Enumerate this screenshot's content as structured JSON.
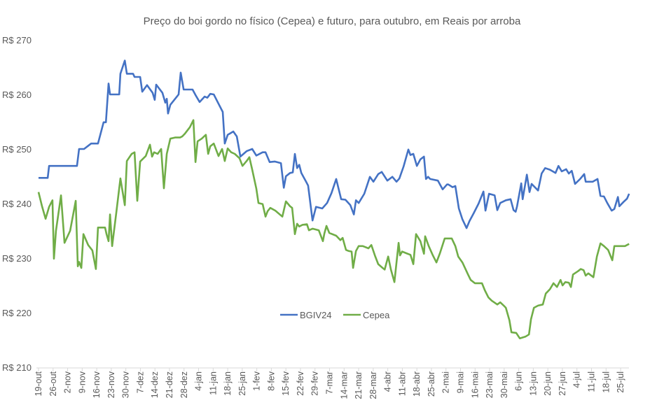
{
  "chart_data": {
    "type": "line",
    "title": "Preço do boi gordo no físico (Cepea) e futuro, para outubro, em Reais por arroba",
    "xlabel": "",
    "ylabel": "",
    "ylim": [
      210,
      270
    ],
    "yticks": [
      210,
      220,
      230,
      240,
      250,
      260,
      270
    ],
    "ytick_prefix": "R$ ",
    "x_unit": "days since 19-out",
    "xlim": [
      0,
      284
    ],
    "xtick_labels": [
      "19-out",
      "26-out",
      "2-nov",
      "9-nov",
      "16-nov",
      "23-nov",
      "30-nov",
      "7-dez",
      "14-dez",
      "21-dez",
      "28-dez",
      "4-jan",
      "11-jan",
      "18-jan",
      "25-jan",
      "1-fev",
      "8-fev",
      "15-fev",
      "22-fev",
      "29-fev",
      "7-mar",
      "14-mar",
      "21-mar",
      "28-mar",
      "4-abr",
      "11-abr",
      "18-abr",
      "25-abr",
      "2-mai",
      "9-mai",
      "16-mai",
      "23-mai",
      "30-mai",
      "6-jun",
      "13-jun",
      "20-jun",
      "27-jun",
      "4-jul",
      "11-jul",
      "18-jul",
      "25-jul"
    ],
    "xtick_step_days": 7,
    "grid": false,
    "legend": {
      "placement": "bottom-center-inside"
    },
    "series": [
      {
        "name": "BGIV24",
        "color": "#4472C4",
        "x": [
          0,
          4.4,
          5.1,
          18.5,
          19.5,
          21.9,
          25.3,
          28.6,
          31.3,
          32.4,
          33.7,
          34.4,
          38.8,
          39.4,
          41.5,
          42.5,
          45.5,
          46.2,
          48.9,
          49.9,
          52.2,
          54.9,
          55.9,
          56.6,
          59.6,
          61,
          61.7,
          62.3,
          63.4,
          67.4,
          68.4,
          69.8,
          74.1,
          75.5,
          77.5,
          79.9,
          81.2,
          82.6,
          84.3,
          86.6,
          88.6,
          89.6,
          91,
          93.7,
          95.4,
          97.1,
          100.1,
          102.8,
          104.8,
          107.8,
          109.2,
          111.2,
          113.6,
          116.6,
          118,
          119,
          121,
          122.3,
          123.3,
          124.4,
          125.4,
          126.4,
          128.7,
          129.7,
          131.8,
          133.5,
          136.5,
          138.8,
          140.9,
          143.2,
          145.6,
          147.6,
          150,
          151.7,
          152.7,
          154,
          156.7,
          159.4,
          161.1,
          163.4,
          165.1,
          167.8,
          170.2,
          172.2,
          173.6,
          175.6,
          177.9,
          178.9,
          180.3,
          182,
          183.7,
          185.4,
          186.4,
          187.4,
          188.4,
          192.1,
          194.4,
          196.5,
          197.1,
          199.2,
          200.5,
          202.2,
          203.9,
          205.9,
          207.3,
          209.3,
          211.7,
          214,
          215,
          216.7,
          219.4,
          220.7,
          222.1,
          224.8,
          227.1,
          228.5,
          229.5,
          230.2,
          232.2,
          232.9,
          234.9,
          236.2,
          237.2,
          240.3,
          242,
          243.7,
          246,
          248.7,
          250.1,
          251.7,
          253.8,
          255.1,
          256.5,
          258.1,
          260.5,
          262.5,
          263.2,
          266.6,
          268.9,
          270.3,
          272,
          273.6,
          275.7,
          277,
          278.7,
          279.4,
          281.4,
          283.1,
          284.1
        ],
        "values": [
          244.7,
          244.7,
          246.9,
          246.9,
          250,
          250,
          251,
          251,
          254.9,
          254.9,
          262,
          260,
          260,
          263.8,
          266.2,
          263.8,
          263.8,
          263.2,
          263.2,
          260.5,
          261.7,
          260.3,
          259,
          261.8,
          260.3,
          258.5,
          259.2,
          256.5,
          258.1,
          260,
          264,
          260.9,
          260.9,
          259.9,
          258.6,
          259.6,
          259.4,
          260.1,
          260,
          258.3,
          256.8,
          251,
          252.6,
          253.2,
          252.3,
          248.6,
          249.6,
          250,
          248.8,
          249.4,
          249.4,
          247.6,
          247.7,
          247.4,
          242.9,
          245,
          245.6,
          245.7,
          249.1,
          246.5,
          247.1,
          245.6,
          244,
          243.3,
          236.9,
          239.4,
          239.1,
          240.1,
          241.9,
          244.5,
          240.8,
          240.7,
          239.7,
          238,
          240.6,
          240.1,
          241.8,
          244.9,
          244,
          245.4,
          245.8,
          244.2,
          244.9,
          244,
          244.6,
          246.8,
          249.9,
          248.9,
          249.1,
          246.9,
          248.1,
          248.6,
          244.5,
          244.9,
          244.5,
          244.2,
          242.6,
          243.5,
          243.5,
          243,
          243.2,
          239.1,
          237.1,
          235.5,
          236.8,
          238.2,
          240,
          242.2,
          238.7,
          241.8,
          241.5,
          238.8,
          240.1,
          240.6,
          240.8,
          238.8,
          238.5,
          239.5,
          243.7,
          240.8,
          245.3,
          242.1,
          243.6,
          242.4,
          245.5,
          246.5,
          246.2,
          245.6,
          246.9,
          245.9,
          246.3,
          245.5,
          246,
          243.6,
          244.5,
          245.4,
          244,
          244,
          244.5,
          241.4,
          241.3,
          240.1,
          238.7,
          239,
          241.2,
          239.5,
          240.3,
          240.9,
          241.8
        ]
      },
      {
        "name": "Cepea",
        "color": "#70AD47",
        "x": [
          0,
          1.7,
          3.4,
          5.1,
          6.7,
          7.4,
          8.4,
          10.8,
          12.5,
          15.2,
          17.9,
          18.9,
          19.5,
          20.6,
          21.6,
          23.9,
          25.9,
          27.6,
          28.6,
          32,
          32.7,
          33.7,
          34.4,
          35.4,
          37.4,
          39.4,
          41.5,
          42.5,
          44.8,
          46.2,
          47.5,
          48.9,
          51.6,
          53.6,
          54.6,
          55.6,
          57.3,
          59,
          60.3,
          61.7,
          63.4,
          65.7,
          68.1,
          69.1,
          70.4,
          72.8,
          74.5,
          75.5,
          76.5,
          78.5,
          80.5,
          81.6,
          82.6,
          84.3,
          86.6,
          88.3,
          89.6,
          91,
          92.7,
          94.4,
          96.7,
          98.1,
          100.1,
          101.4,
          102.8,
          104.8,
          105.8,
          107.8,
          109.2,
          110.2,
          111.5,
          113.9,
          117.3,
          119,
          121,
          122,
          123.3,
          124.4,
          125.4,
          127,
          129.1,
          130.1,
          131.8,
          134.8,
          136.8,
          137.5,
          138.5,
          139.9,
          143.2,
          145.2,
          146.3,
          147.9,
          149.3,
          150.6,
          151.3,
          152.7,
          154,
          156,
          158.7,
          160.1,
          161.8,
          163.4,
          165.5,
          166.5,
          168.2,
          169.5,
          171.2,
          173.2,
          173.9,
          174.9,
          176.9,
          178.9,
          180.3,
          181.6,
          183.7,
          185.4,
          186,
          187.7,
          189.7,
          191.4,
          193.1,
          195.4,
          198.8,
          200.5,
          201.9,
          203.9,
          206.6,
          207.9,
          209.9,
          213.3,
          214.7,
          216.4,
          218,
          220.7,
          222.1,
          223.8,
          224.8,
          226.5,
          227.5,
          229.8,
          231.5,
          234.2,
          235.9,
          236.9,
          238.3,
          240.3,
          242.6,
          244,
          246,
          247.7,
          249.4,
          251.1,
          252.1,
          253.4,
          255.1,
          256.1,
          257.1,
          259.5,
          260.8,
          262.2,
          263.2,
          264.5,
          266.9,
          268.6,
          270.3,
          272,
          274,
          276,
          277,
          280,
          282.1,
          284.1
        ],
        "values": [
          242.1,
          239.5,
          237.2,
          239.4,
          240.6,
          229.9,
          235,
          241.5,
          232.8,
          235,
          240.5,
          228.5,
          229.3,
          228.2,
          234.4,
          232.4,
          231.4,
          228,
          235.6,
          235.6,
          234.4,
          233.1,
          238,
          232.2,
          238.3,
          244.6,
          239.7,
          247.8,
          249.1,
          249.4,
          240.5,
          247.7,
          248.7,
          250.8,
          248.6,
          249.4,
          249.1,
          250,
          242.8,
          249.1,
          251.9,
          252.1,
          252.1,
          252.3,
          252.8,
          254,
          255.3,
          247.6,
          251.4,
          251.9,
          252.6,
          249.1,
          250.5,
          251,
          248.7,
          250,
          247.8,
          250.1,
          249.4,
          249.1,
          248.3,
          246.9,
          247.8,
          248.5,
          246.2,
          242.7,
          240.1,
          239.9,
          237.6,
          238.6,
          239.2,
          238.7,
          237.6,
          240.4,
          239.5,
          239.2,
          234.4,
          236.3,
          235.8,
          236.1,
          236.2,
          235.1,
          235.4,
          235.1,
          233.1,
          234.5,
          235.9,
          234.6,
          234.1,
          233.3,
          233.7,
          231.5,
          231.3,
          231.2,
          228.2,
          231.3,
          232.2,
          232.2,
          231.8,
          232.4,
          230.5,
          228.9,
          228.2,
          227.9,
          230.3,
          227.9,
          225.6,
          232.8,
          230.5,
          231.2,
          230.9,
          230.6,
          228.9,
          234.4,
          233.1,
          230.8,
          234,
          232.2,
          230.5,
          229.2,
          230.9,
          233.6,
          233.6,
          232.2,
          230.3,
          229.2,
          227,
          226,
          225.4,
          225.4,
          224.1,
          222.8,
          222.2,
          221.5,
          221.9,
          221.3,
          220.9,
          218.6,
          216.4,
          216.3,
          215.3,
          215.6,
          216,
          218.8,
          220.9,
          221.3,
          221.5,
          223.5,
          224.3,
          225.4,
          224.7,
          226,
          225,
          225.6,
          225.5,
          224.7,
          227,
          227.6,
          228,
          227.8,
          226.8,
          227.2,
          226.5,
          230.3,
          232.7,
          232.2,
          231.5,
          229.6,
          232.2,
          232.2,
          232.2,
          232.6
        ]
      }
    ]
  }
}
